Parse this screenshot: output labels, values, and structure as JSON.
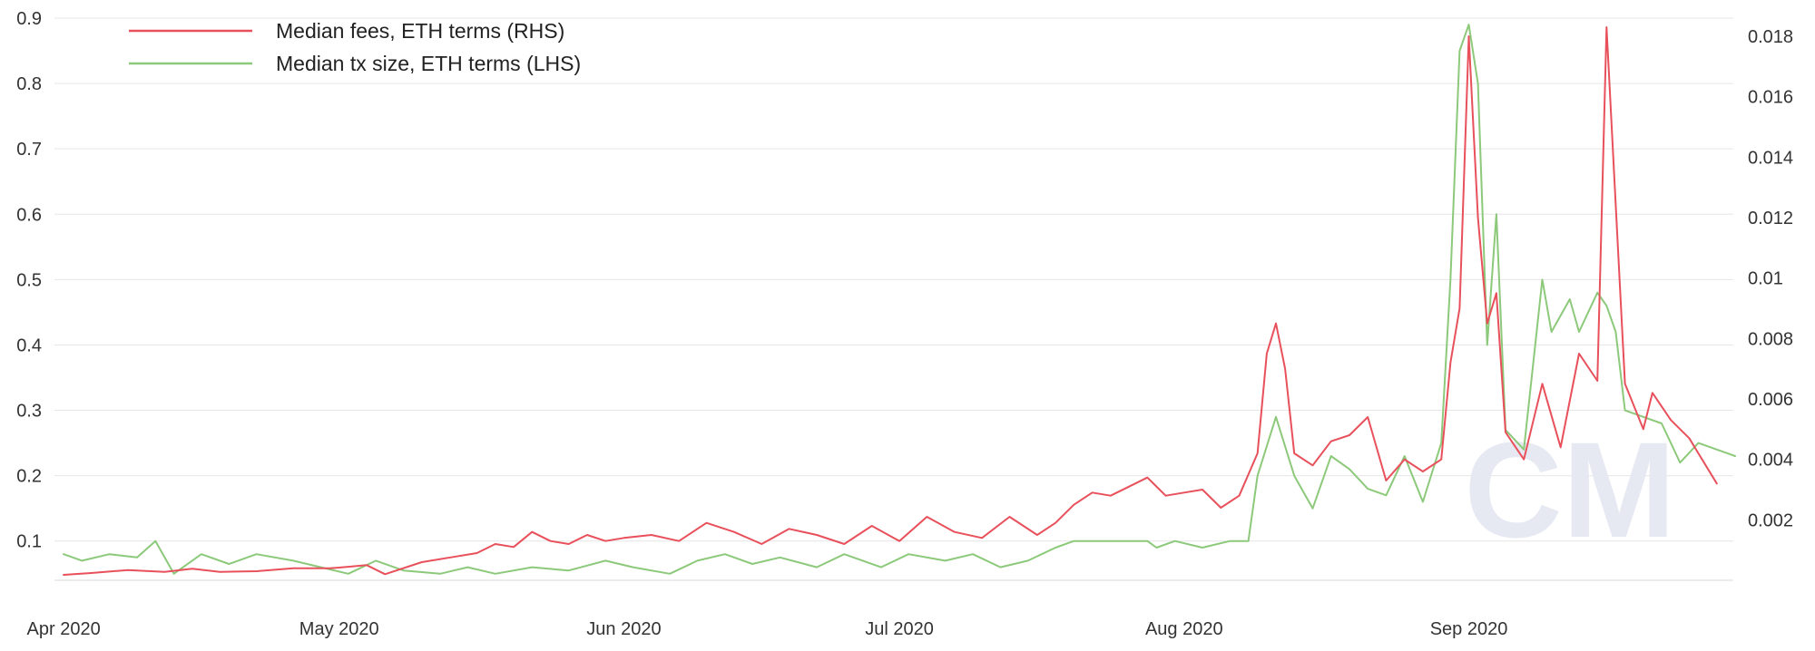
{
  "chart_data": {
    "type": "line",
    "title": "",
    "xlabel": "",
    "ylabel": "",
    "x_axis": {
      "type": "date",
      "range": [
        "2020-03-31",
        "2020-09-30"
      ],
      "ticks": [
        {
          "date": "2020-04-01",
          "label": "Apr 2020"
        },
        {
          "date": "2020-05-01",
          "label": "May 2020"
        },
        {
          "date": "2020-06-01",
          "label": "Jun 2020"
        },
        {
          "date": "2020-07-01",
          "label": "Jul 2020"
        },
        {
          "date": "2020-08-01",
          "label": "Aug 2020"
        },
        {
          "date": "2020-09-01",
          "label": "Sep 2020"
        }
      ]
    },
    "y_left": {
      "range": [
        0.04,
        0.9
      ],
      "ticks": [
        {
          "value": 0.1,
          "label": "0.1"
        },
        {
          "value": 0.2,
          "label": "0.2"
        },
        {
          "value": 0.3,
          "label": "0.3"
        },
        {
          "value": 0.4,
          "label": "0.4"
        },
        {
          "value": 0.5,
          "label": "0.5"
        },
        {
          "value": 0.6,
          "label": "0.6"
        },
        {
          "value": 0.7,
          "label": "0.7"
        },
        {
          "value": 0.8,
          "label": "0.8"
        },
        {
          "value": 0.9,
          "label": "0.9"
        }
      ]
    },
    "y_right": {
      "range": [
        0.0,
        0.0186
      ],
      "ticks": [
        {
          "value": 0.002,
          "label": "0.002"
        },
        {
          "value": 0.004,
          "label": "0.004"
        },
        {
          "value": 0.006,
          "label": "0.006"
        },
        {
          "value": 0.008,
          "label": "0.008"
        },
        {
          "value": 0.01,
          "label": "0.01"
        },
        {
          "value": 0.012,
          "label": "0.012"
        },
        {
          "value": 0.014,
          "label": "0.014"
        },
        {
          "value": 0.016,
          "label": "0.016"
        },
        {
          "value": 0.018,
          "label": "0.018"
        }
      ]
    },
    "grid": true,
    "legend_position": "top-left",
    "watermark": "CM",
    "series": [
      {
        "name": "Median fees, ETH terms (RHS)",
        "axis": "right",
        "color": "#e8505b",
        "points": [
          [
            "2020-04-01",
            0.00018
          ],
          [
            "2020-04-04",
            0.00024
          ],
          [
            "2020-04-08",
            0.00034
          ],
          [
            "2020-04-12",
            0.00028
          ],
          [
            "2020-04-15",
            0.00038
          ],
          [
            "2020-04-18",
            0.00028
          ],
          [
            "2020-04-22",
            0.0003
          ],
          [
            "2020-04-26",
            0.0004
          ],
          [
            "2020-04-30",
            0.0004
          ],
          [
            "2020-05-01",
            0.00042
          ],
          [
            "2020-05-04",
            0.0005
          ],
          [
            "2020-05-06",
            0.0002
          ],
          [
            "2020-05-10",
            0.0006
          ],
          [
            "2020-05-14",
            0.0008
          ],
          [
            "2020-05-16",
            0.0009
          ],
          [
            "2020-05-18",
            0.0012
          ],
          [
            "2020-05-20",
            0.0011
          ],
          [
            "2020-05-22",
            0.0016
          ],
          [
            "2020-05-24",
            0.0013
          ],
          [
            "2020-05-26",
            0.0012
          ],
          [
            "2020-05-28",
            0.0015
          ],
          [
            "2020-05-30",
            0.0013
          ],
          [
            "2020-06-01",
            0.0014
          ],
          [
            "2020-06-04",
            0.0015
          ],
          [
            "2020-06-07",
            0.0013
          ],
          [
            "2020-06-10",
            0.0019
          ],
          [
            "2020-06-13",
            0.0016
          ],
          [
            "2020-06-16",
            0.0012
          ],
          [
            "2020-06-19",
            0.0017
          ],
          [
            "2020-06-22",
            0.0015
          ],
          [
            "2020-06-25",
            0.0012
          ],
          [
            "2020-06-28",
            0.0018
          ],
          [
            "2020-07-01",
            0.0013
          ],
          [
            "2020-07-04",
            0.0021
          ],
          [
            "2020-07-07",
            0.0016
          ],
          [
            "2020-07-10",
            0.0014
          ],
          [
            "2020-07-13",
            0.0021
          ],
          [
            "2020-07-16",
            0.0015
          ],
          [
            "2020-07-18",
            0.0019
          ],
          [
            "2020-07-20",
            0.0025
          ],
          [
            "2020-07-22",
            0.0029
          ],
          [
            "2020-07-24",
            0.0028
          ],
          [
            "2020-07-26",
            0.0031
          ],
          [
            "2020-07-28",
            0.0034
          ],
          [
            "2020-07-30",
            0.0028
          ],
          [
            "2020-08-01",
            0.0029
          ],
          [
            "2020-08-03",
            0.003
          ],
          [
            "2020-08-05",
            0.0024
          ],
          [
            "2020-08-07",
            0.0028
          ],
          [
            "2020-08-09",
            0.0042
          ],
          [
            "2020-08-10",
            0.0075
          ],
          [
            "2020-08-11",
            0.0085
          ],
          [
            "2020-08-12",
            0.007
          ],
          [
            "2020-08-13",
            0.0042
          ],
          [
            "2020-08-15",
            0.0038
          ],
          [
            "2020-08-17",
            0.0046
          ],
          [
            "2020-08-19",
            0.0048
          ],
          [
            "2020-08-21",
            0.0054
          ],
          [
            "2020-08-23",
            0.0033
          ],
          [
            "2020-08-25",
            0.004
          ],
          [
            "2020-08-27",
            0.0036
          ],
          [
            "2020-08-29",
            0.004
          ],
          [
            "2020-08-30",
            0.0072
          ],
          [
            "2020-08-31",
            0.009
          ],
          [
            "2020-09-01",
            0.018
          ],
          [
            "2020-09-02",
            0.012
          ],
          [
            "2020-09-03",
            0.0085
          ],
          [
            "2020-09-04",
            0.0095
          ],
          [
            "2020-09-05",
            0.0049
          ],
          [
            "2020-09-07",
            0.004
          ],
          [
            "2020-09-09",
            0.0065
          ],
          [
            "2020-09-11",
            0.0044
          ],
          [
            "2020-09-13",
            0.0075
          ],
          [
            "2020-09-15",
            0.0066
          ],
          [
            "2020-09-16",
            0.0183
          ],
          [
            "2020-09-18",
            0.0065
          ],
          [
            "2020-09-20",
            0.005
          ],
          [
            "2020-09-21",
            0.0062
          ],
          [
            "2020-09-23",
            0.0053
          ],
          [
            "2020-09-25",
            0.0047
          ],
          [
            "2020-09-26",
            0.0042
          ],
          [
            "2020-09-28",
            0.0032
          ]
        ]
      },
      {
        "name": "Median tx size, ETH terms (LHS)",
        "axis": "left",
        "color": "#8cc97a",
        "points": [
          [
            "2020-04-01",
            0.08
          ],
          [
            "2020-04-03",
            0.07
          ],
          [
            "2020-04-06",
            0.08
          ],
          [
            "2020-04-09",
            0.075
          ],
          [
            "2020-04-11",
            0.1
          ],
          [
            "2020-04-13",
            0.05
          ],
          [
            "2020-04-16",
            0.08
          ],
          [
            "2020-04-19",
            0.065
          ],
          [
            "2020-04-22",
            0.08
          ],
          [
            "2020-04-26",
            0.07
          ],
          [
            "2020-04-29",
            0.06
          ],
          [
            "2020-05-02",
            0.05
          ],
          [
            "2020-05-05",
            0.07
          ],
          [
            "2020-05-08",
            0.055
          ],
          [
            "2020-05-12",
            0.05
          ],
          [
            "2020-05-15",
            0.06
          ],
          [
            "2020-05-18",
            0.05
          ],
          [
            "2020-05-22",
            0.06
          ],
          [
            "2020-05-26",
            0.055
          ],
          [
            "2020-05-30",
            0.07
          ],
          [
            "2020-06-02",
            0.06
          ],
          [
            "2020-06-06",
            0.05
          ],
          [
            "2020-06-09",
            0.07
          ],
          [
            "2020-06-12",
            0.08
          ],
          [
            "2020-06-15",
            0.065
          ],
          [
            "2020-06-18",
            0.075
          ],
          [
            "2020-06-22",
            0.06
          ],
          [
            "2020-06-25",
            0.08
          ],
          [
            "2020-06-29",
            0.06
          ],
          [
            "2020-07-02",
            0.08
          ],
          [
            "2020-07-06",
            0.07
          ],
          [
            "2020-07-09",
            0.08
          ],
          [
            "2020-07-12",
            0.06
          ],
          [
            "2020-07-15",
            0.07
          ],
          [
            "2020-07-18",
            0.09
          ],
          [
            "2020-07-20",
            0.1
          ],
          [
            "2020-07-24",
            0.1
          ],
          [
            "2020-07-28",
            0.1
          ],
          [
            "2020-07-29",
            0.09
          ],
          [
            "2020-07-31",
            0.1
          ],
          [
            "2020-08-03",
            0.09
          ],
          [
            "2020-08-06",
            0.1
          ],
          [
            "2020-08-08",
            0.1
          ],
          [
            "2020-08-09",
            0.2
          ],
          [
            "2020-08-11",
            0.29
          ],
          [
            "2020-08-13",
            0.2
          ],
          [
            "2020-08-15",
            0.15
          ],
          [
            "2020-08-17",
            0.23
          ],
          [
            "2020-08-19",
            0.21
          ],
          [
            "2020-08-21",
            0.18
          ],
          [
            "2020-08-23",
            0.17
          ],
          [
            "2020-08-25",
            0.23
          ],
          [
            "2020-08-27",
            0.16
          ],
          [
            "2020-08-29",
            0.25
          ],
          [
            "2020-08-30",
            0.5
          ],
          [
            "2020-08-31",
            0.85
          ],
          [
            "2020-09-01",
            0.89
          ],
          [
            "2020-09-02",
            0.8
          ],
          [
            "2020-09-03",
            0.4
          ],
          [
            "2020-09-04",
            0.6
          ],
          [
            "2020-09-05",
            0.27
          ],
          [
            "2020-09-07",
            0.24
          ],
          [
            "2020-09-09",
            0.5
          ],
          [
            "2020-09-10",
            0.42
          ],
          [
            "2020-09-12",
            0.47
          ],
          [
            "2020-09-13",
            0.42
          ],
          [
            "2020-09-15",
            0.48
          ],
          [
            "2020-09-16",
            0.46
          ],
          [
            "2020-09-17",
            0.42
          ],
          [
            "2020-09-18",
            0.3
          ],
          [
            "2020-09-20",
            0.29
          ],
          [
            "2020-09-22",
            0.28
          ],
          [
            "2020-09-24",
            0.22
          ],
          [
            "2020-09-26",
            0.25
          ],
          [
            "2020-09-28",
            0.24
          ],
          [
            "2020-09-30",
            0.23
          ]
        ]
      }
    ]
  }
}
